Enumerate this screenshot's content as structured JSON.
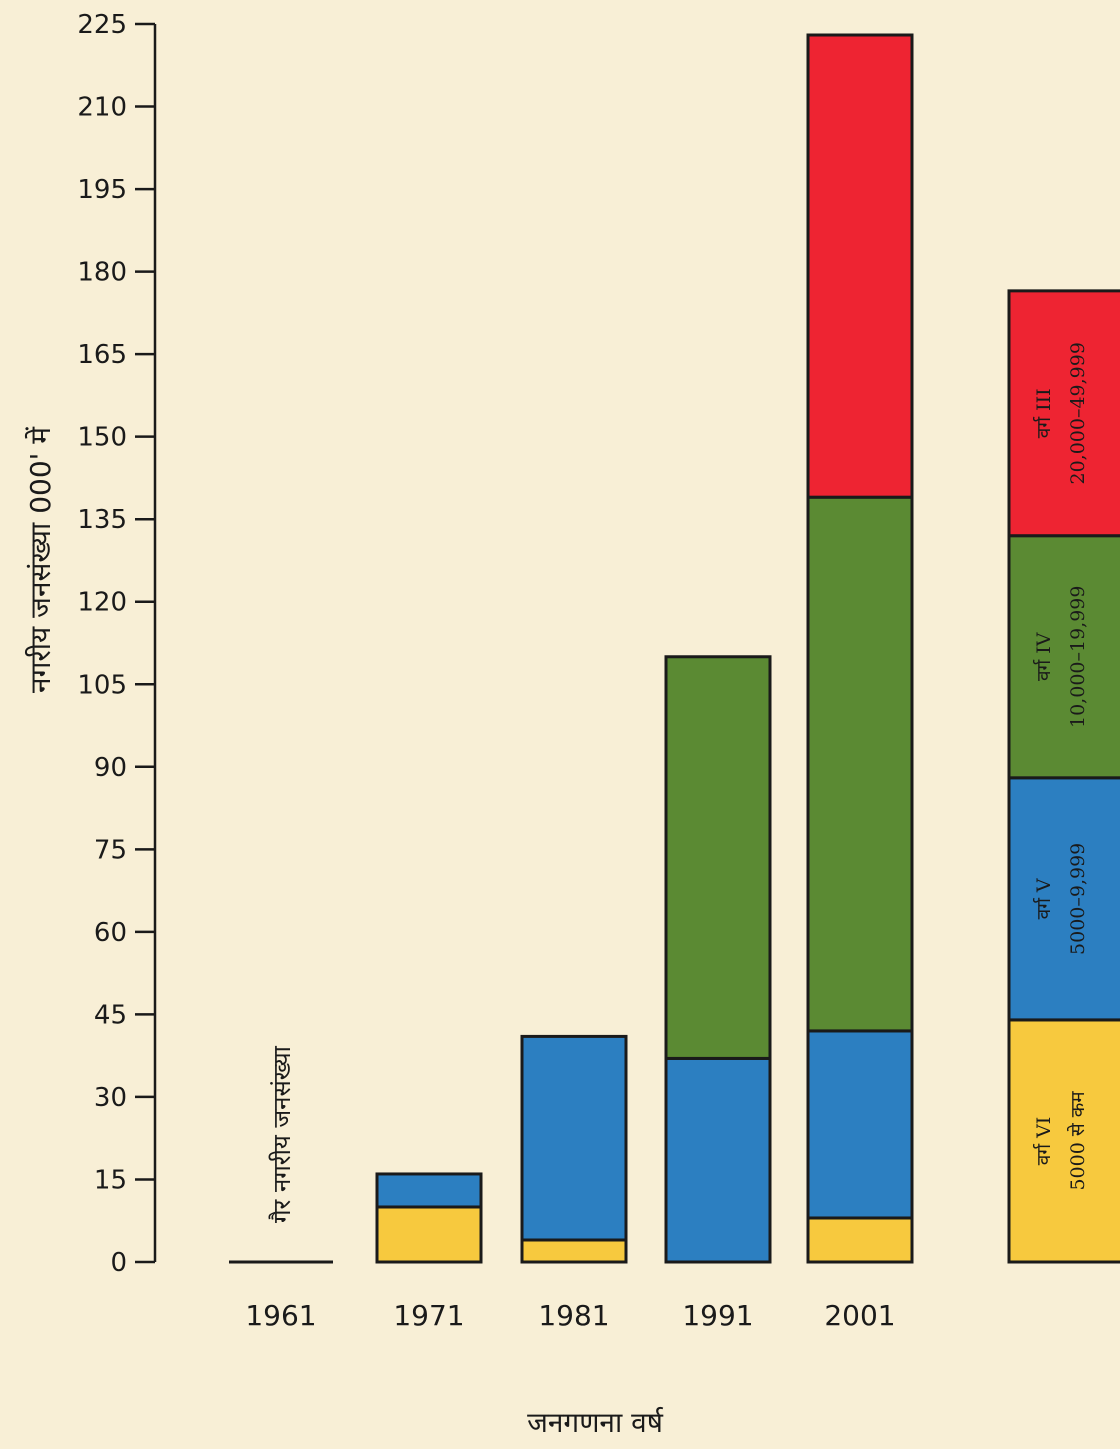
{
  "chart_data": {
    "type": "bar",
    "stacked": true,
    "xlabel": "जनगणना वर्ष",
    "ylabel": "नगरीय जनसंख्या 000' में",
    "ylim": [
      0,
      225
    ],
    "yticks": [
      0,
      15,
      30,
      45,
      60,
      75,
      90,
      105,
      120,
      135,
      150,
      165,
      180,
      195,
      210,
      225
    ],
    "categories": [
      "1961",
      "1971",
      "1981",
      "1991",
      "2001"
    ],
    "series": [
      {
        "name": "वर्ग VI",
        "range": "5000 से कम",
        "color": "#f7c93e",
        "values": [
          0,
          10,
          4,
          0,
          8
        ]
      },
      {
        "name": "वर्ग V",
        "range": "5000–9,999",
        "color": "#2c7fc1",
        "values": [
          0,
          6,
          37,
          37,
          34
        ]
      },
      {
        "name": "वर्ग IV",
        "range": "10,000–19,999",
        "color": "#5b8a33",
        "values": [
          0,
          0,
          0,
          73,
          97
        ]
      },
      {
        "name": "वर्ग III",
        "range": "20,000–49,999",
        "color": "#ee2432",
        "values": [
          0,
          0,
          0,
          0,
          84
        ]
      }
    ],
    "annotations": [
      "गैर नगरीय जनसंख्या"
    ],
    "legend_position": "right"
  }
}
